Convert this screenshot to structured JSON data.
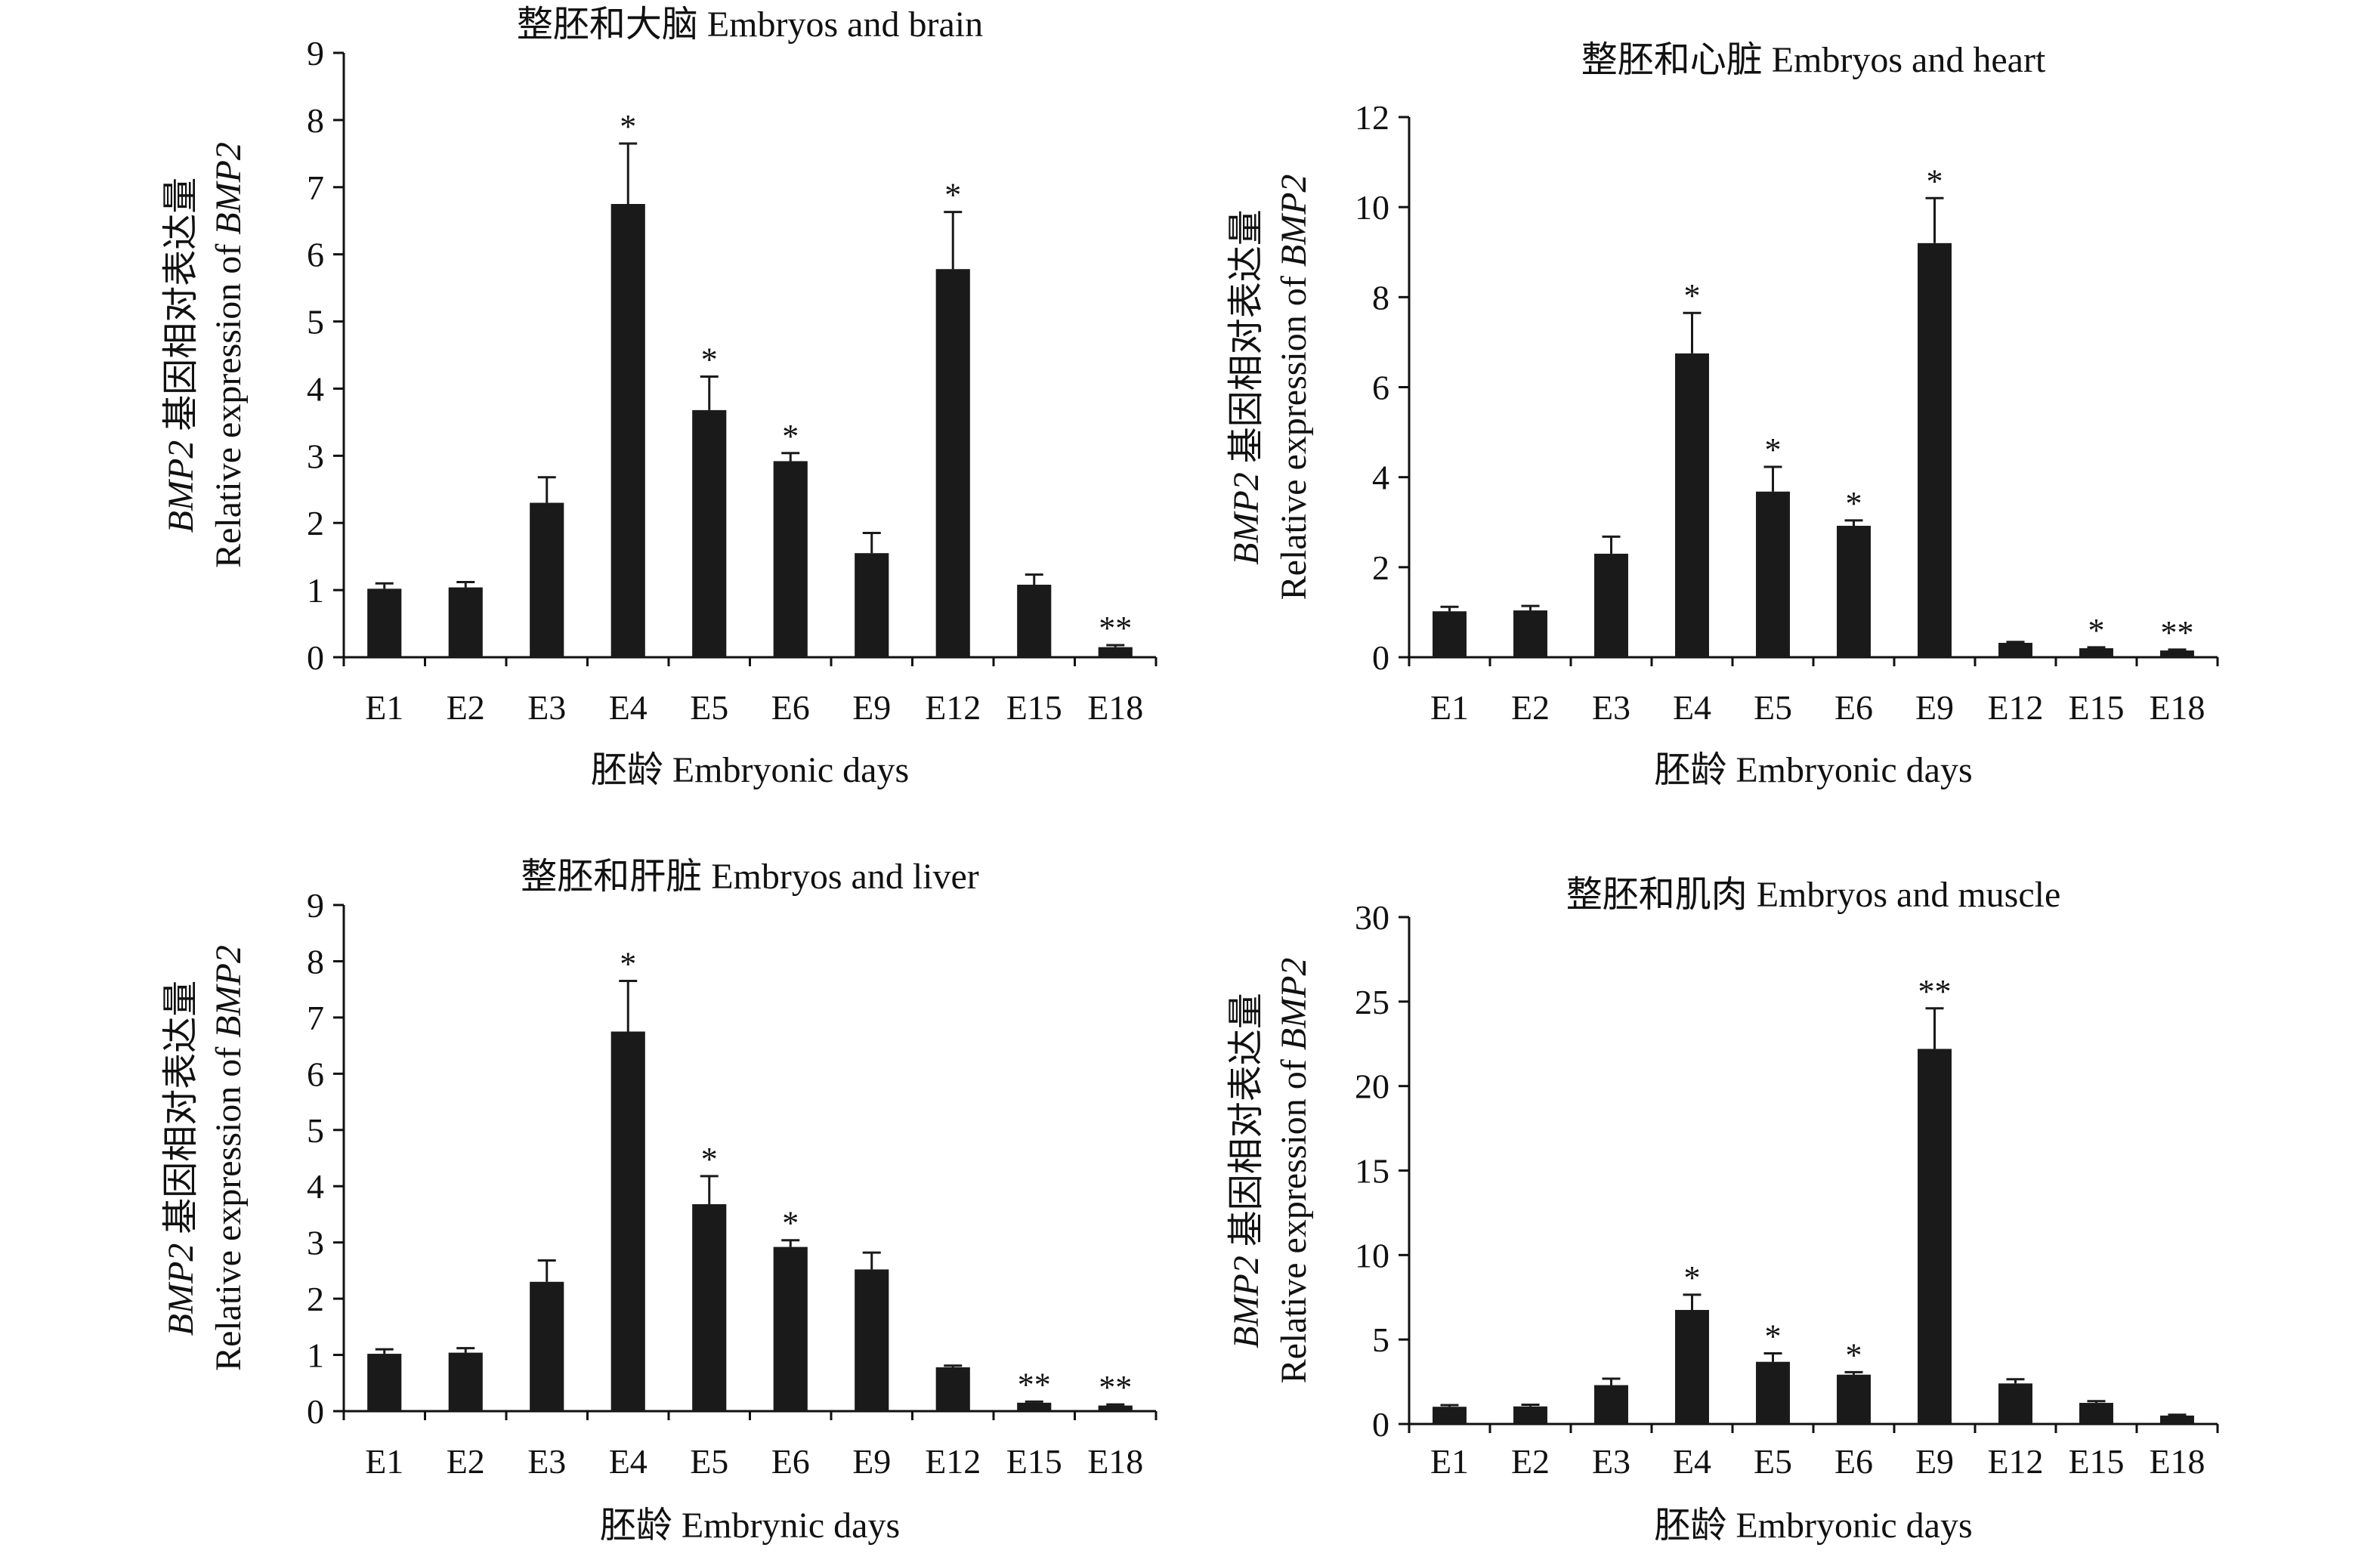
{
  "chart_data": [
    {
      "type": "bar",
      "title": "整胚和大脑 Embryos and brain",
      "xlabel": "胚龄 Embryonic days",
      "ylabel_line1": "BMP2 基因相对表达量",
      "ylabel_line2": "Relative expression of BMP2",
      "categories": [
        "E1",
        "E2",
        "E3",
        "E4",
        "E5",
        "E6",
        "E9",
        "E12",
        "E15",
        "E18"
      ],
      "values": [
        1.02,
        1.04,
        2.3,
        6.75,
        3.68,
        2.92,
        1.55,
        5.78,
        1.08,
        0.15
      ],
      "errors": [
        0.08,
        0.08,
        0.38,
        0.9,
        0.5,
        0.12,
        0.3,
        0.85,
        0.15,
        0.03
      ],
      "significance": [
        "",
        "",
        "",
        "*",
        "*",
        "*",
        "",
        "*",
        "",
        "**"
      ],
      "ylim": [
        0,
        9
      ],
      "yticks": [
        0,
        1,
        2,
        3,
        4,
        5,
        6,
        7,
        8,
        9
      ],
      "grid": false,
      "legend": "none"
    },
    {
      "type": "bar",
      "title": "整胚和心脏 Embryos and heart",
      "xlabel": "胚龄 Embryonic days",
      "ylabel_line1": "BMP2 基因相对表达量",
      "ylabel_line2": "Relative expression of BMP2",
      "categories": [
        "E1",
        "E2",
        "E3",
        "E4",
        "E5",
        "E6",
        "E9",
        "E12",
        "E15",
        "E18"
      ],
      "values": [
        1.02,
        1.04,
        2.3,
        6.75,
        3.68,
        2.92,
        9.2,
        0.32,
        0.2,
        0.15
      ],
      "errors": [
        0.1,
        0.1,
        0.38,
        0.9,
        0.55,
        0.12,
        1.0,
        0.02,
        0.02,
        0.02
      ],
      "significance": [
        "",
        "",
        "",
        "*",
        "*",
        "*",
        "*",
        "",
        "*",
        "**"
      ],
      "ylim": [
        0,
        12
      ],
      "yticks": [
        0,
        2,
        4,
        6,
        8,
        10,
        12
      ],
      "grid": false,
      "legend": "none"
    },
    {
      "type": "bar",
      "title": "整胚和肝脏 Embryos and liver",
      "xlabel": "胚龄 Embrynic days",
      "ylabel_line1": "BMP2 基因相对表达量",
      "ylabel_line2": "Relative expression of BMP2",
      "categories": [
        "E1",
        "E2",
        "E3",
        "E4",
        "E5",
        "E6",
        "E9",
        "E12",
        "E15",
        "E18"
      ],
      "values": [
        1.02,
        1.04,
        2.3,
        6.75,
        3.68,
        2.92,
        2.52,
        0.78,
        0.15,
        0.1
      ],
      "errors": [
        0.08,
        0.08,
        0.38,
        0.9,
        0.5,
        0.12,
        0.3,
        0.03,
        0.02,
        0.02
      ],
      "significance": [
        "",
        "",
        "",
        "*",
        "*",
        "*",
        "",
        "",
        "**",
        "**"
      ],
      "ylim": [
        0,
        9
      ],
      "yticks": [
        0,
        1,
        2,
        3,
        4,
        5,
        6,
        7,
        8,
        9
      ],
      "grid": false,
      "legend": "none"
    },
    {
      "type": "bar",
      "title": "整胚和肌肉 Embryos and muscle",
      "xlabel": "胚龄 Embryonic days",
      "ylabel_line1": "BMP2 基因相对表达量",
      "ylabel_line2": "Relative expression of BMP2",
      "categories": [
        "E1",
        "E2",
        "E3",
        "E4",
        "E5",
        "E6",
        "E9",
        "E12",
        "E15",
        "E18"
      ],
      "values": [
        1.02,
        1.04,
        2.3,
        6.75,
        3.68,
        2.92,
        22.2,
        2.4,
        1.25,
        0.5
      ],
      "errors": [
        0.1,
        0.1,
        0.38,
        0.9,
        0.5,
        0.15,
        2.4,
        0.25,
        0.1,
        0.05
      ],
      "significance": [
        "",
        "",
        "",
        "*",
        "*",
        "*",
        "**",
        "",
        "",
        ""
      ],
      "ylim": [
        0,
        30
      ],
      "yticks": [
        0,
        5,
        10,
        15,
        20,
        25,
        30
      ],
      "grid": false,
      "legend": "none"
    }
  ]
}
